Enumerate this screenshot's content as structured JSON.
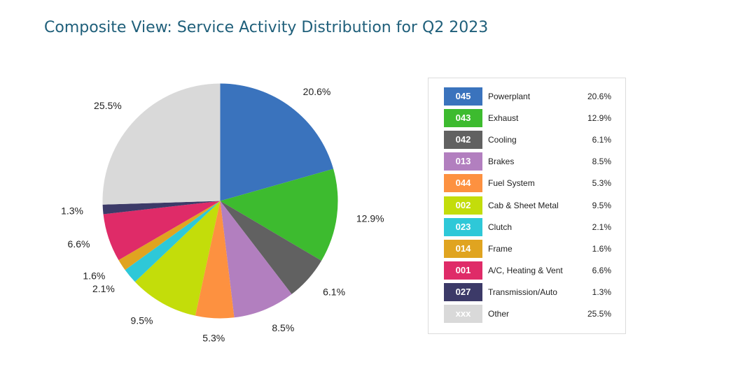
{
  "header": {
    "title": "Composite View: Service Activity Distribution for Q2 2023"
  },
  "chart_data": {
    "type": "pie",
    "title": "Composite View: Service Activity Distribution for Q2 2023",
    "start_angle": "12 o'clock, clockwise",
    "slices": [
      {
        "code": "045",
        "label": "Powerplant",
        "value": 20.6,
        "value_label": "20.6%",
        "color": "#3a73bd"
      },
      {
        "code": "043",
        "label": "Exhaust",
        "value": 12.9,
        "value_label": "12.9%",
        "color": "#3dbb2f"
      },
      {
        "code": "042",
        "label": "Cooling",
        "value": 6.1,
        "value_label": "6.1%",
        "color": "#616161"
      },
      {
        "code": "013",
        "label": "Brakes",
        "value": 8.5,
        "value_label": "8.5%",
        "color": "#b27fbf"
      },
      {
        "code": "044",
        "label": "Fuel System",
        "value": 5.3,
        "value_label": "5.3%",
        "color": "#fd9140"
      },
      {
        "code": "002",
        "label": "Cab & Sheet Metal",
        "value": 9.5,
        "value_label": "9.5%",
        "color": "#c3dd0a"
      },
      {
        "code": "023",
        "label": "Clutch",
        "value": 2.1,
        "value_label": "2.1%",
        "color": "#2ec8d8"
      },
      {
        "code": "014",
        "label": "Frame",
        "value": 1.6,
        "value_label": "1.6%",
        "color": "#e0a420"
      },
      {
        "code": "001",
        "label": "A/C, Heating & Vent",
        "value": 6.6,
        "value_label": "6.6%",
        "color": "#df2b68"
      },
      {
        "code": "027",
        "label": "Transmission/Auto",
        "value": 1.3,
        "value_label": "1.3%",
        "color": "#3c3a68"
      },
      {
        "code": "xxx",
        "label": "Other",
        "value": 25.5,
        "value_label": "25.5%",
        "color": "#d9d9d9"
      }
    ],
    "legend_placement": "right",
    "legend_value_order": [
      "20.6%",
      "12.9%",
      "6.1%",
      "8.5%",
      "5.3%",
      "9.5%",
      "2.1%",
      "1.6%",
      "6.6%",
      "1.3%",
      "25.5%"
    ]
  }
}
